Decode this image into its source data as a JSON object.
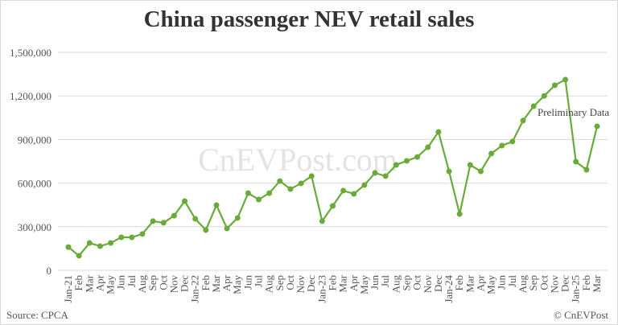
{
  "chart_data": {
    "type": "line",
    "title": "China passenger NEV retail sales",
    "source": "Source: CPCA",
    "copyright": "© CnEVPost",
    "watermark": "CnEVPost.com",
    "annotation": "Preliminary Data",
    "color": "#6aaa3a",
    "grid": true,
    "ylim": [
      0,
      1500000
    ],
    "yticks": [
      "0",
      "300,000",
      "600,000",
      "900,000",
      "1,200,000",
      "1,500,000"
    ],
    "ytick_values": [
      0,
      300000,
      600000,
      900000,
      1200000,
      1500000
    ],
    "categories": [
      "Jan-21",
      "Feb",
      "Mar",
      "Apr",
      "May",
      "Jun",
      "Jul",
      "Aug",
      "Sep",
      "Oct",
      "Nov",
      "Dec",
      "Jan-22",
      "Feb",
      "Mar",
      "Apr",
      "May",
      "Jun",
      "Jul",
      "Aug",
      "Sep",
      "Oct",
      "Nov",
      "Dec",
      "Jan-23",
      "Feb",
      "Mar",
      "Apr",
      "May",
      "Jun",
      "Jul",
      "Aug",
      "Sep",
      "Oct",
      "Nov",
      "Dec",
      "Jan-24",
      "Feb",
      "Mar",
      "Apr",
      "May",
      "Jun",
      "Jul",
      "Aug",
      "Sep",
      "Oct",
      "Nov",
      "Dec",
      "Jan-25",
      "Feb",
      "Mar"
    ],
    "values": [
      160000,
      100000,
      188000,
      166000,
      188000,
      227000,
      227000,
      250000,
      338000,
      327000,
      376000,
      476000,
      354000,
      277000,
      448000,
      288000,
      360000,
      531000,
      487000,
      531000,
      614000,
      559000,
      598000,
      648000,
      338000,
      443000,
      548000,
      526000,
      587000,
      670000,
      648000,
      725000,
      753000,
      780000,
      847000,
      952000,
      681000,
      387000,
      725000,
      681000,
      803000,
      858000,
      886000,
      1030000,
      1129000,
      1200000,
      1273000,
      1312000,
      747000,
      692000,
      991000
    ]
  }
}
